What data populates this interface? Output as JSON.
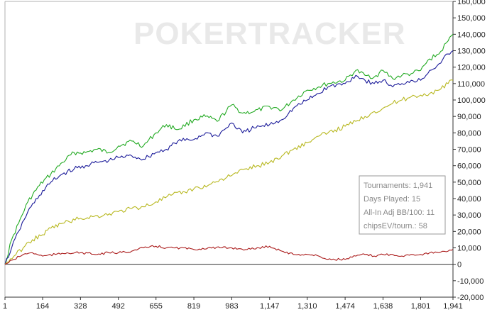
{
  "app": {
    "watermark": "POKERTRACKER",
    "watermark_color": "#e9e9e9"
  },
  "stats_box": {
    "tournaments": "Tournaments: 1,941",
    "days_played": "Days Played: 15",
    "allin_bb100": "All-In Adj BB/100: 11",
    "chips_ev": "chipsEV/tourn.: 58"
  },
  "chart_data": {
    "type": "line",
    "title": "",
    "xlabel": "",
    "ylabel": "",
    "xlim": [
      1,
      1941
    ],
    "ylim": [
      -20000,
      160000
    ],
    "x_ticks": [
      1,
      164,
      328,
      492,
      655,
      819,
      983,
      1147,
      1310,
      1474,
      1638,
      1801,
      1941
    ],
    "x_tick_labels": [
      "1",
      "164",
      "328",
      "492",
      "655",
      "819",
      "983",
      "1,147",
      "1,310",
      "1,474",
      "1,638",
      "1,801",
      "1,941"
    ],
    "y_ticks": [
      -20000,
      -10000,
      0,
      10000,
      20000,
      30000,
      40000,
      50000,
      60000,
      70000,
      80000,
      90000,
      100000,
      110000,
      120000,
      130000,
      140000,
      150000,
      160000
    ],
    "y_tick_labels": [
      "-20,000",
      "-10,000",
      "0",
      "10,000",
      "20,000",
      "30,000",
      "40,000",
      "50,000",
      "60,000",
      "70,000",
      "80,000",
      "90,000",
      "100,000",
      "110,000",
      "120,000",
      "130,000",
      "140,000",
      "150,000",
      "160,000"
    ],
    "grid": false,
    "series": [
      {
        "color": "#22aa22",
        "x": [
          1,
          30,
          60,
          100,
          150,
          200,
          250,
          300,
          350,
          400,
          450,
          492,
          550,
          600,
          655,
          700,
          750,
          819,
          870,
          920,
          983,
          1030,
          1080,
          1147,
          1200,
          1250,
          1310,
          1360,
          1400,
          1474,
          1520,
          1560,
          1600,
          1638,
          1680,
          1720,
          1760,
          1801,
          1840,
          1880,
          1920,
          1941
        ],
        "values": [
          0,
          15000,
          25000,
          38000,
          48000,
          55000,
          62000,
          68000,
          68000,
          70000,
          68000,
          72000,
          75000,
          72000,
          80000,
          85000,
          82000,
          88000,
          90000,
          87000,
          97000,
          92000,
          93000,
          96000,
          94000,
          100000,
          106000,
          108000,
          110000,
          112000,
          118000,
          115000,
          114000,
          118000,
          113000,
          115000,
          116000,
          118000,
          125000,
          128000,
          136000,
          140000
        ]
      },
      {
        "color": "#1a1a99",
        "x": [
          1,
          30,
          60,
          100,
          150,
          200,
          250,
          300,
          350,
          400,
          450,
          492,
          550,
          600,
          655,
          700,
          750,
          819,
          870,
          920,
          983,
          1030,
          1080,
          1147,
          1200,
          1250,
          1310,
          1360,
          1400,
          1474,
          1520,
          1560,
          1600,
          1638,
          1680,
          1720,
          1760,
          1801,
          1840,
          1880,
          1920,
          1941
        ],
        "values": [
          0,
          10000,
          20000,
          32000,
          42000,
          50000,
          55000,
          58000,
          60000,
          62000,
          63000,
          65000,
          66000,
          64000,
          68000,
          70000,
          75000,
          76000,
          80000,
          78000,
          86000,
          80000,
          83000,
          85000,
          88000,
          95000,
          100000,
          104000,
          108000,
          110000,
          115000,
          112000,
          110000,
          112000,
          108000,
          110000,
          112000,
          112000,
          118000,
          122000,
          128000,
          130000
        ]
      },
      {
        "color": "#b8b820",
        "x": [
          1,
          40,
          80,
          120,
          164,
          200,
          250,
          328,
          380,
          430,
          492,
          550,
          600,
          655,
          720,
          780,
          819,
          880,
          940,
          983,
          1040,
          1100,
          1147,
          1200,
          1250,
          1310,
          1360,
          1400,
          1474,
          1520,
          1560,
          1600,
          1638,
          1680,
          1720,
          1760,
          1801,
          1840,
          1880,
          1920,
          1941
        ],
        "values": [
          0,
          5000,
          10000,
          15000,
          18000,
          22000,
          25000,
          28000,
          29000,
          30000,
          32000,
          34000,
          35000,
          38000,
          42000,
          44000,
          46000,
          48000,
          52000,
          54000,
          58000,
          60000,
          62000,
          66000,
          70000,
          74000,
          78000,
          80000,
          84000,
          87000,
          90000,
          93000,
          95000,
          98000,
          100000,
          102000,
          103000,
          104000,
          106000,
          110000,
          112000
        ]
      },
      {
        "color": "#aa1a1a",
        "x": [
          1,
          40,
          80,
          120,
          164,
          220,
          270,
          328,
          400,
          450,
          492,
          550,
          600,
          655,
          700,
          760,
          819,
          880,
          940,
          983,
          1050,
          1100,
          1147,
          1200,
          1250,
          1310,
          1360,
          1400,
          1474,
          1520,
          1560,
          1600,
          1638,
          1680,
          1720,
          1760,
          1801,
          1840,
          1880,
          1920,
          1941
        ],
        "values": [
          0,
          3000,
          6000,
          7000,
          5000,
          6000,
          7000,
          7000,
          6000,
          7000,
          7000,
          8000,
          10000,
          11000,
          10000,
          10000,
          9000,
          10000,
          10000,
          10000,
          9000,
          10000,
          11000,
          8000,
          6000,
          6000,
          5000,
          3000,
          3000,
          5000,
          6000,
          5000,
          6000,
          6000,
          5000,
          6000,
          6000,
          7000,
          7000,
          8000,
          9000
        ]
      }
    ]
  }
}
